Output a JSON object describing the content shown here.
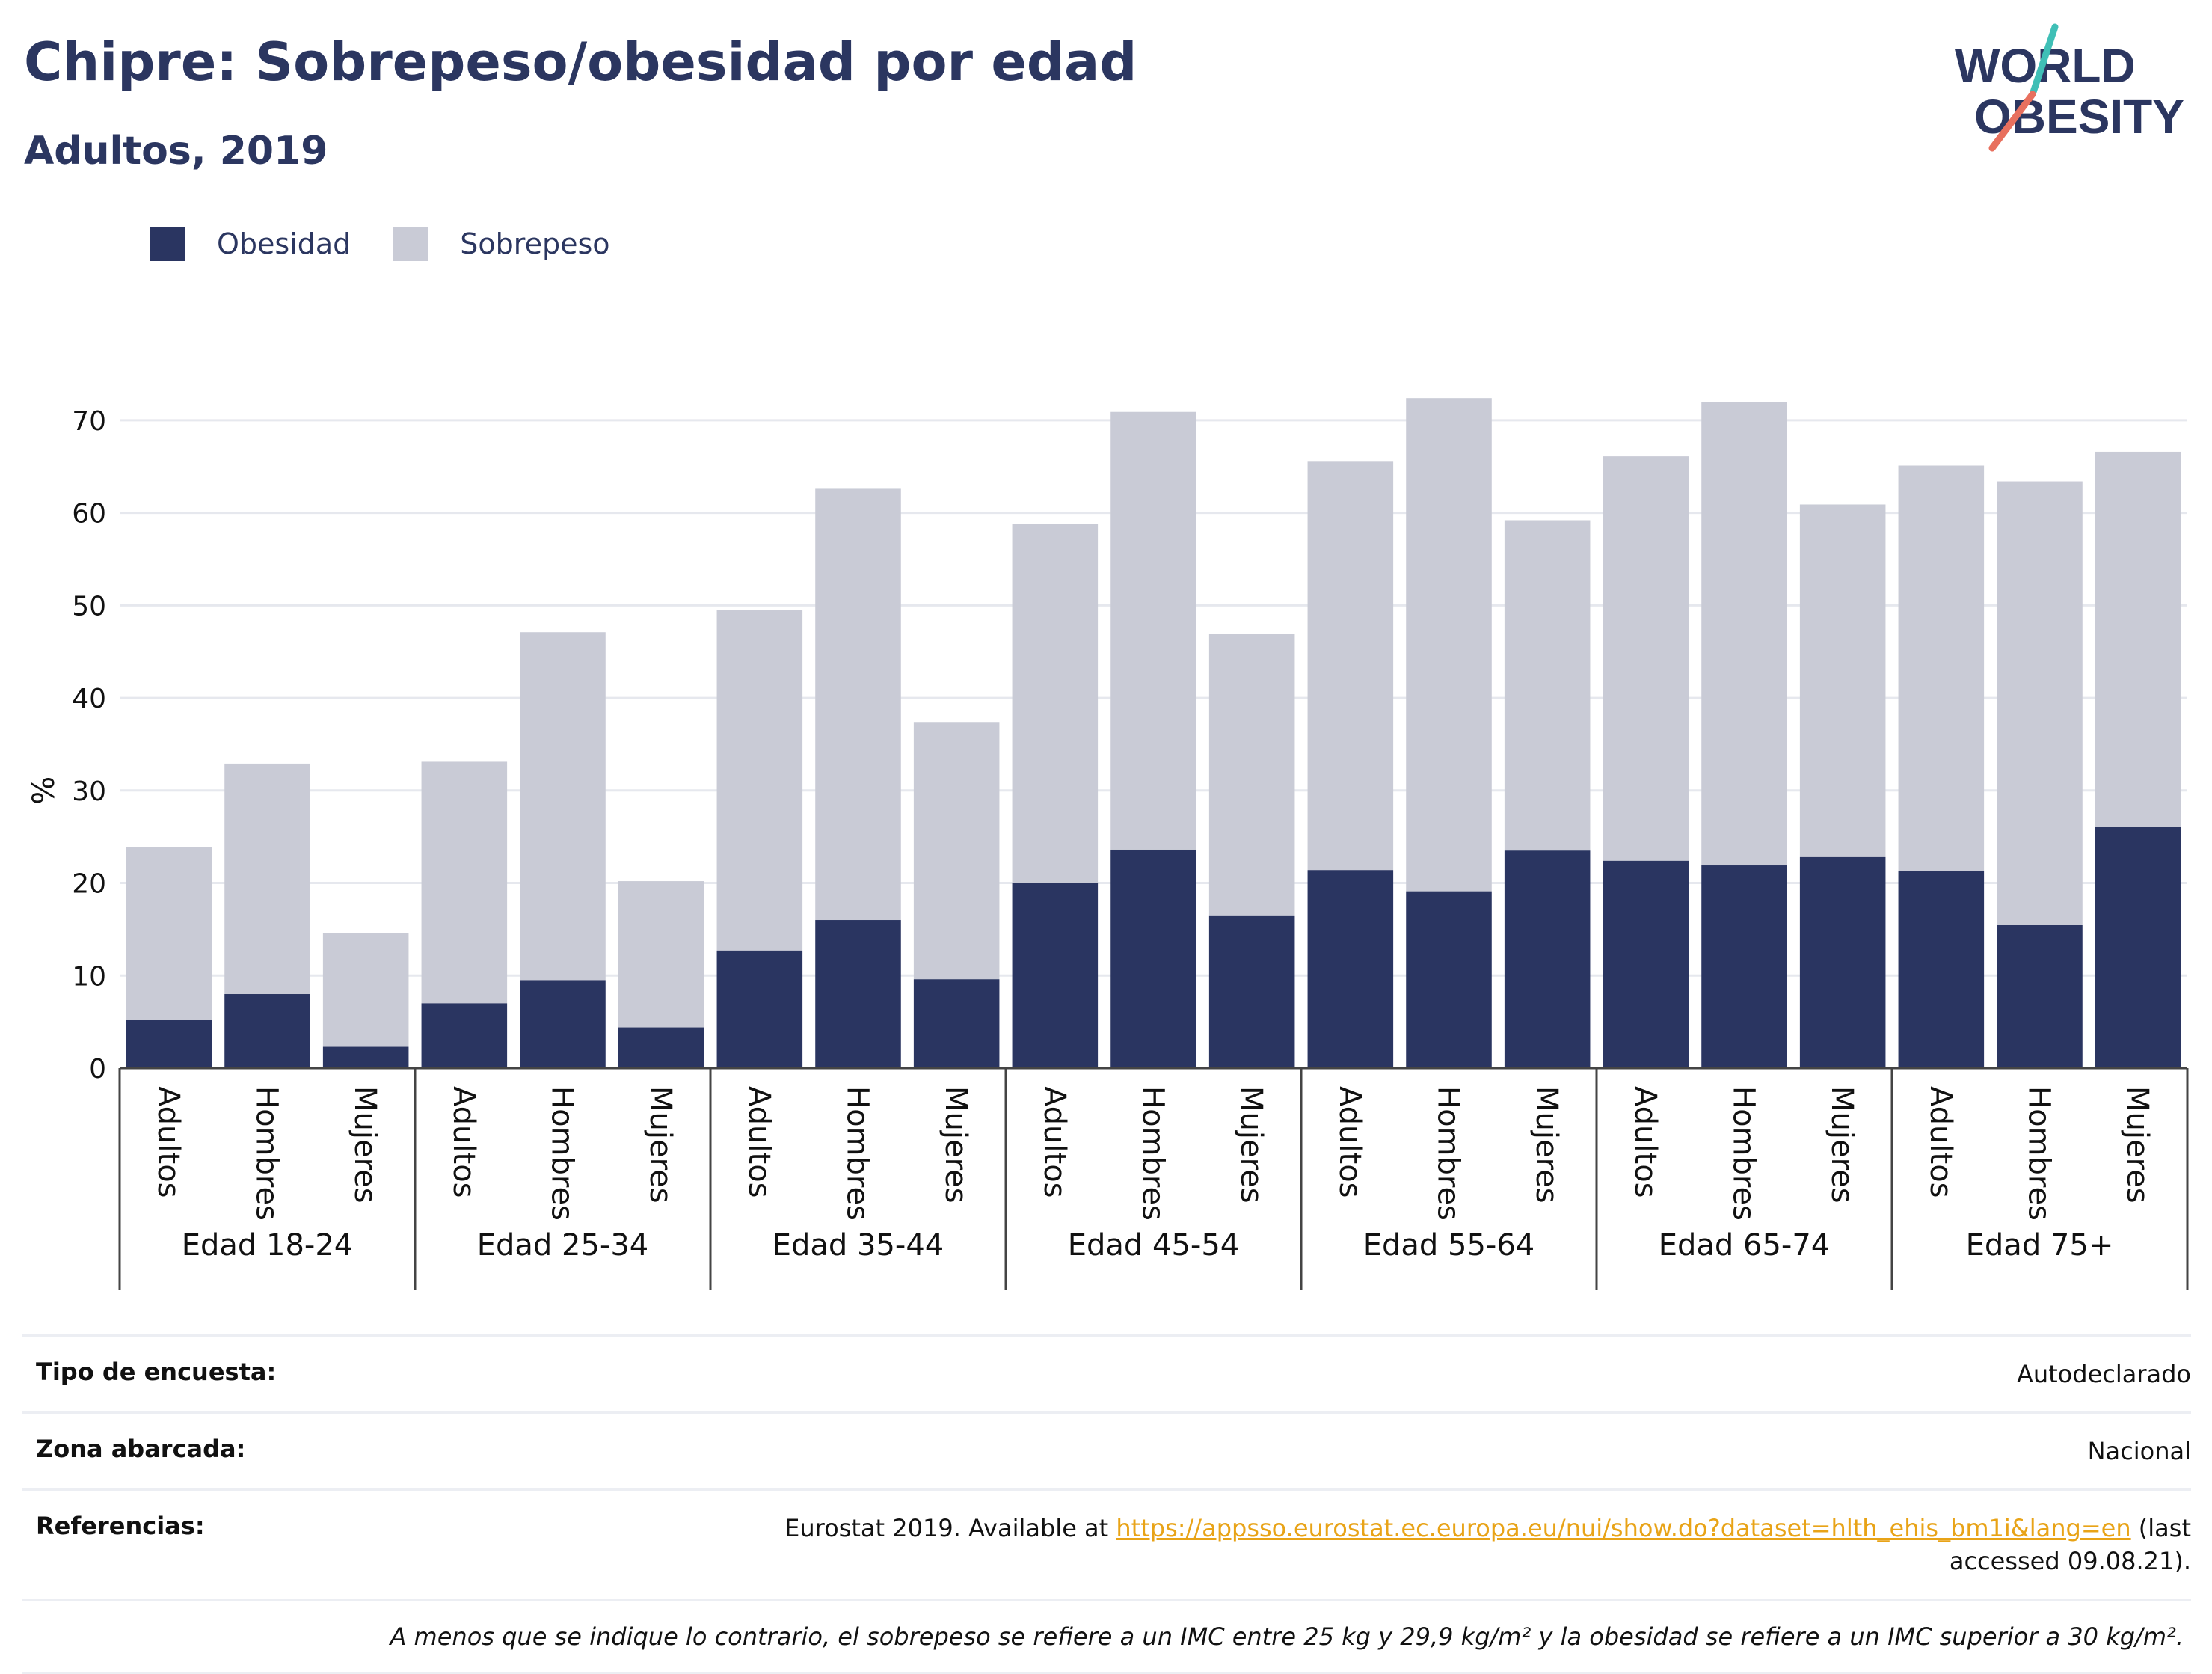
{
  "header": {
    "title": "Chipre: Sobrepeso/obesidad por edad",
    "subtitle": "Adultos, 2019"
  },
  "logo": {
    "line1": "WORLD",
    "line2": "OBESITY"
  },
  "colors": {
    "obesity": "#2a3561",
    "overweight": "#c9cbd6",
    "accent_teal": "#3fbfb6",
    "accent_coral": "#e8705e",
    "link": "#e8a317"
  },
  "chart_data": {
    "type": "bar",
    "stacked": true,
    "ylabel": "%",
    "ylim": [
      0,
      75
    ],
    "yticks": [
      0,
      10,
      20,
      30,
      40,
      50,
      60,
      70
    ],
    "grid": true,
    "legend_position": "top-left",
    "series": [
      {
        "name": "Obesidad",
        "color": "#2a3561"
      },
      {
        "name": "Sobrepeso",
        "color": "#c9cbd6"
      }
    ],
    "groups": [
      {
        "label": "Edad 18-24",
        "bars": [
          {
            "label": "Adultos",
            "obesity": 5.2,
            "overweight": 18.7
          },
          {
            "label": "Hombres",
            "obesity": 8.0,
            "overweight": 24.9
          },
          {
            "label": "Mujeres",
            "obesity": 2.3,
            "overweight": 12.3
          }
        ]
      },
      {
        "label": "Edad 25-34",
        "bars": [
          {
            "label": "Adultos",
            "obesity": 7.0,
            "overweight": 26.1
          },
          {
            "label": "Hombres",
            "obesity": 9.5,
            "overweight": 37.6
          },
          {
            "label": "Mujeres",
            "obesity": 4.4,
            "overweight": 15.8
          }
        ]
      },
      {
        "label": "Edad 35-44",
        "bars": [
          {
            "label": "Adultos",
            "obesity": 12.7,
            "overweight": 36.8
          },
          {
            "label": "Hombres",
            "obesity": 16.0,
            "overweight": 46.6
          },
          {
            "label": "Mujeres",
            "obesity": 9.6,
            "overweight": 27.8
          }
        ]
      },
      {
        "label": "Edad 45-54",
        "bars": [
          {
            "label": "Adultos",
            "obesity": 20.0,
            "overweight": 38.8
          },
          {
            "label": "Hombres",
            "obesity": 23.6,
            "overweight": 47.3
          },
          {
            "label": "Mujeres",
            "obesity": 16.5,
            "overweight": 30.4
          }
        ]
      },
      {
        "label": "Edad 55-64",
        "bars": [
          {
            "label": "Adultos",
            "obesity": 21.4,
            "overweight": 44.2
          },
          {
            "label": "Hombres",
            "obesity": 19.1,
            "overweight": 53.3
          },
          {
            "label": "Mujeres",
            "obesity": 23.5,
            "overweight": 35.7
          }
        ]
      },
      {
        "label": "Edad 65-74",
        "bars": [
          {
            "label": "Adultos",
            "obesity": 22.4,
            "overweight": 43.7
          },
          {
            "label": "Hombres",
            "obesity": 21.9,
            "overweight": 50.1
          },
          {
            "label": "Mujeres",
            "obesity": 22.8,
            "overweight": 38.1
          }
        ]
      },
      {
        "label": "Edad 75+",
        "bars": [
          {
            "label": "Adultos",
            "obesity": 21.3,
            "overweight": 43.8
          },
          {
            "label": "Hombres",
            "obesity": 15.5,
            "overweight": 47.9
          },
          {
            "label": "Mujeres",
            "obesity": 26.1,
            "overweight": 40.5
          }
        ]
      }
    ]
  },
  "info": {
    "survey_type_label": "Tipo de encuesta:",
    "survey_type_value": "Autodeclarado",
    "area_label": "Zona abarcada:",
    "area_value": "Nacional",
    "references_label": "Referencias:",
    "references_prefix": "Eurostat 2019. Available at ",
    "references_link": "https://appsso.eurostat.ec.europa.eu/nui/show.do?dataset=hlth_ehis_bm1i&lang=en",
    "references_suffix": " (last accessed 09.08.21).",
    "footnote": "A menos que se indique lo contrario, el sobrepeso se refiere a un IMC entre 25 kg y 29,9 kg/m² y la obesidad se refiere a un IMC superior a 30 kg/m²."
  }
}
